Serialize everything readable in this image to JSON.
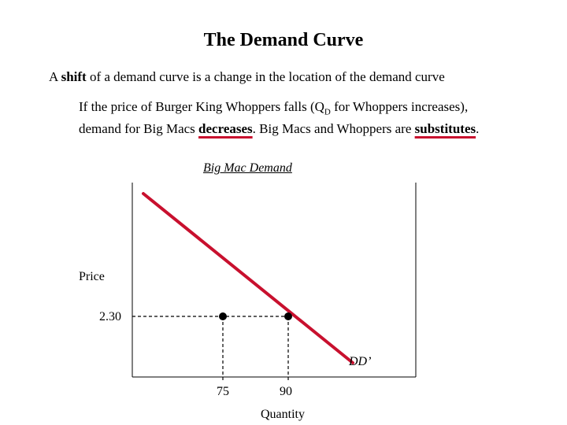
{
  "title": "The Demand Curve",
  "lead": {
    "pre": "A ",
    "bold": "shift",
    "post": " of a demand curve is a change in the location of the demand curve"
  },
  "paragraph": {
    "part1": "If the price of Burger King Whoppers falls (Q",
    "sub": "D",
    "part2": " for Whoppers increases), demand for Big Macs ",
    "emph1": "decreases",
    "part3": ". Big Macs and Whoppers are ",
    "emph2": "substitutes",
    "part4": "."
  },
  "diagram": {
    "subtitle": "Big Mac Demand",
    "y_axis_label": "Price",
    "x_axis_label": "Quantity",
    "price_tick": "2.30",
    "qty_ticks": [
      "75",
      "90"
    ],
    "curve_label": "DD’",
    "line_color": "#c8102e"
  }
}
